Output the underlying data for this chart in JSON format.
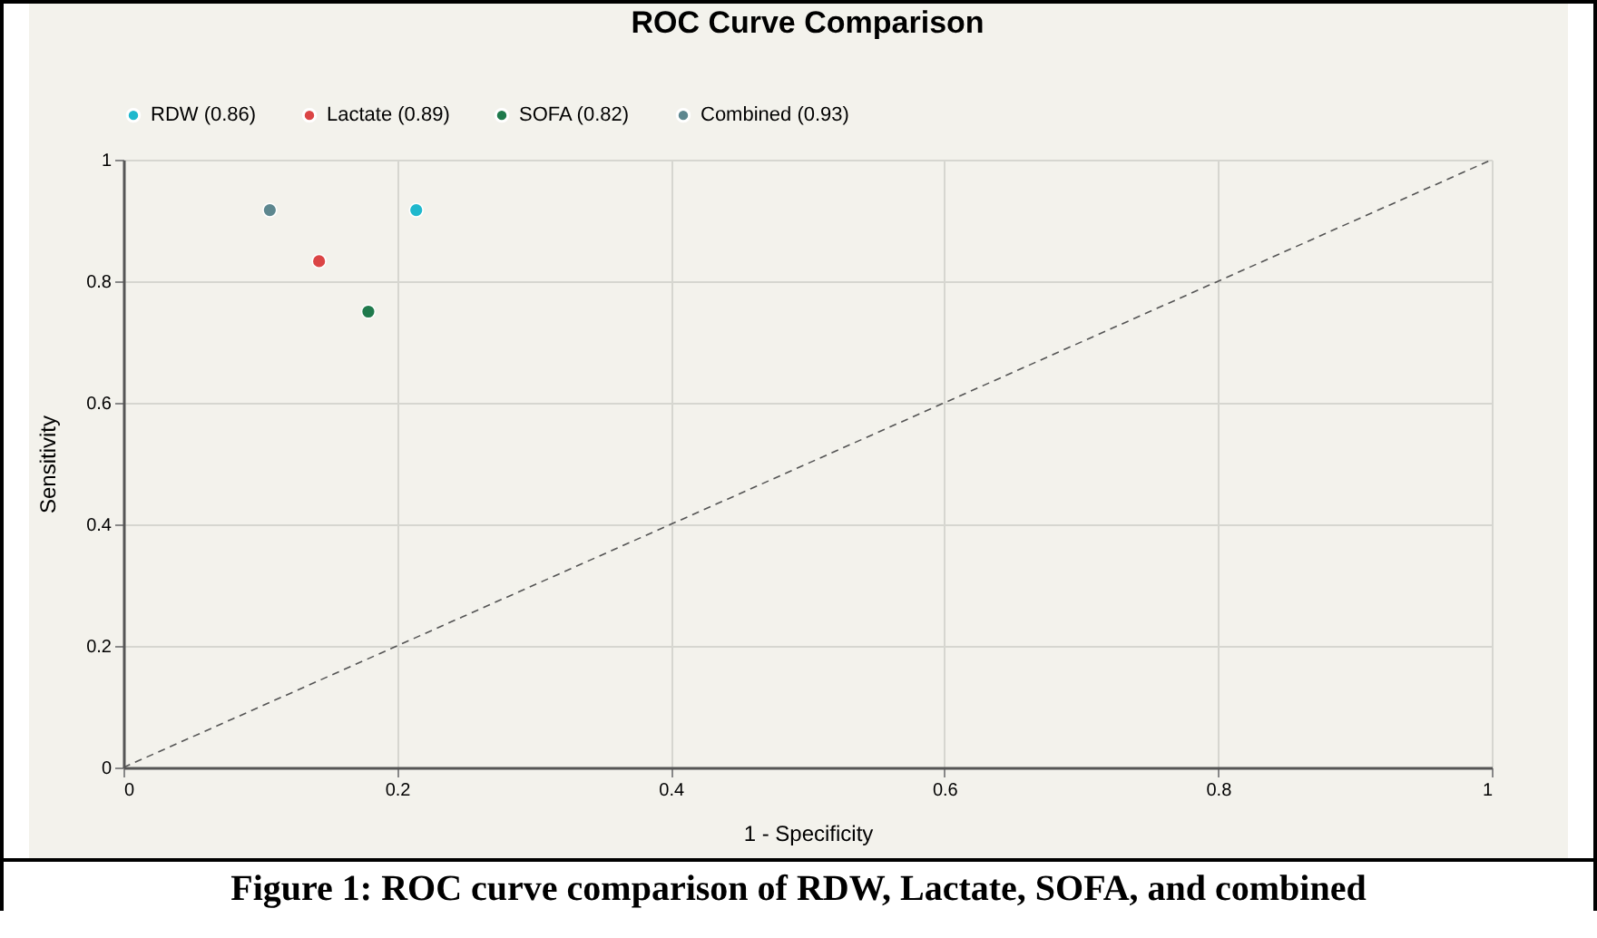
{
  "chart_data": {
    "type": "scatter",
    "title": "ROC Curve Comparison",
    "xlabel": "1 - Specificity",
    "ylabel": "Sensitivity",
    "annotations": [
      "Figure 1: ROC curve comparison of RDW, Lactate, SOFA, and combined"
    ],
    "series": [
      {
        "name": "RDW (0.86)",
        "color": "#1fb8cd",
        "x": [
          0.214
        ],
        "values": [
          0.917
        ]
      },
      {
        "name": "Lactate (0.89)",
        "color": "#db4545",
        "x": [
          0.143
        ],
        "values": [
          0.833
        ]
      },
      {
        "name": "SOFA (0.82)",
        "color": "#1f7a4c",
        "x": [
          0.179
        ],
        "values": [
          0.75
        ]
      },
      {
        "name": "Combined (0.93)",
        "color": "#5d878f",
        "x": [
          0.107
        ],
        "values": [
          0.917
        ]
      },
      {
        "type": "line",
        "color": "#555555",
        "line_style": "dashed",
        "marker": "none",
        "x": [
          0,
          1
        ],
        "values": [
          0,
          1
        ]
      }
    ],
    "xlim": [
      0,
      1
    ],
    "ylim": [
      0,
      1
    ],
    "xticks": [
      0,
      0.2,
      0.4,
      0.6,
      0.8,
      1
    ],
    "yticks": [
      0,
      0.2,
      0.4,
      0.6,
      0.8,
      1
    ],
    "grid": true,
    "legend": "top",
    "marker": "circle"
  }
}
